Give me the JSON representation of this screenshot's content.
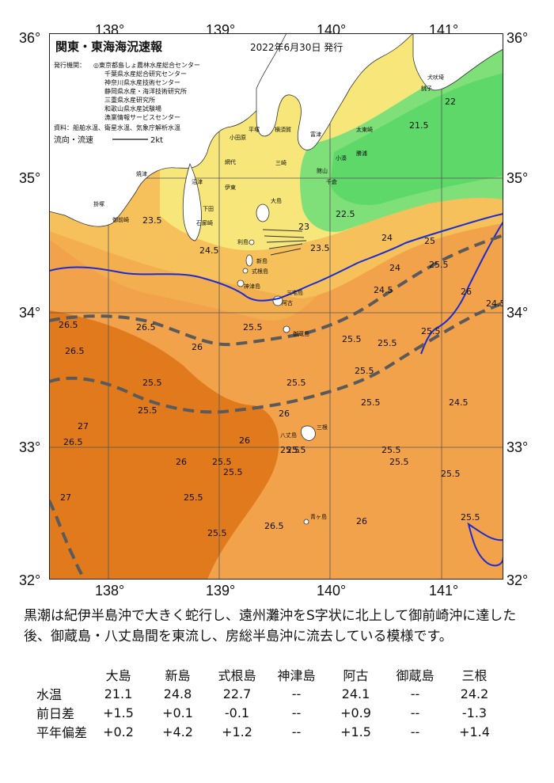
{
  "header": {
    "title": "関東・東海海況速報",
    "date": "2022年6月30日 発行"
  },
  "organizations": {
    "label": "発行機関：",
    "items": [
      "◎東京都島しょ農林水産総合センター",
      "千葉県水産総合研究センター",
      "神奈川県水産技術センター",
      "静岡県水産・海洋技術研究所",
      "三重県水産研究所",
      "和歌山県水産試験場",
      "漁業情報サービスセンター"
    ]
  },
  "source_line": "資料：船舶水温、衛星水温、気象庁解析水温",
  "flow_legend": {
    "label": "流向・流速",
    "value": "2kt"
  },
  "axes": {
    "lon_labels": [
      "138°",
      "139°",
      "140°",
      "141°"
    ],
    "lat_left": [
      "36°",
      "35°",
      "34°",
      "33°",
      "32°"
    ],
    "lat_right": [
      "36°",
      "35°",
      "34°",
      "33°",
      "32°"
    ]
  },
  "place_labels": {
    "choshi": "銚子",
    "inubosaki": "犬吠埼",
    "taitosaki": "太東崎",
    "katsuura": "勝浦",
    "kominato": "小湊",
    "futtsu": "富津",
    "yokosuka": "横須賀",
    "hiratsuka": "平塚",
    "odawara": "小田原",
    "ito": "伊東",
    "ajiro": "網代",
    "miura": "三崎",
    "tateyama": "館山",
    "chikura": "千倉",
    "numazu": "沼津",
    "yaizu": "焼津",
    "kakezuka": "掛塚",
    "omaezaki": "御前崎",
    "irozaki": "石廊崎",
    "shimoda": "下田",
    "oshima": "大島",
    "toshima": "利島",
    "niijima": "新島",
    "shikinejima": "式根島",
    "kozushima": "神津島",
    "miyakejima": "三宅島",
    "ako": "阿古",
    "mikurajima": "御蔵島",
    "hachijojima": "八丈島",
    "mitsune": "三根",
    "aogashima": "青ヶ島"
  },
  "isotherms": [
    "21.5",
    "22",
    "22.5",
    "23",
    "23.5",
    "24",
    "24.5",
    "25",
    "25.5",
    "26",
    "26.5",
    "27",
    "23.5",
    "24",
    "24.5",
    "25.5",
    "25.5",
    "25.5",
    "25.5",
    "24.5",
    "25.5",
    "25.5",
    "25.5",
    "26.5",
    "26.5",
    "26",
    "26",
    "25.5",
    "25.5",
    "25.5",
    "26.5",
    "27",
    "26.5",
    "26",
    "26",
    "25.5",
    "25.5",
    "25.5",
    "25.5",
    "25.5",
    "25.5",
    "25.5",
    "25.5",
    "24.5",
    "25.5",
    "26"
  ],
  "colors": {
    "ocean_warm": "#f2a24a",
    "ocean_hot": "#e07a1c",
    "ocean_mid": "#f6c05a",
    "ocean_cool": "#f7e67a",
    "ocean_cold": "#5fd86a",
    "kuroshio_axis": "#5a5a5a",
    "isotherm_25": "#1c2cd0",
    "land": "#ffffff"
  },
  "summary": "黒潮は紀伊半島沖で大きく蛇行し、遠州灘沖をS字状に北上して御前崎沖に達した後、御蔵島・八丈島間を東流し、房総半島沖に流去している模様です。",
  "stats": {
    "stations": [
      "大島",
      "新島",
      "式根島",
      "神津島",
      "阿古",
      "御蔵島",
      "三根"
    ],
    "rows": [
      {
        "label": "水温",
        "values": [
          "21.1",
          "24.8",
          "22.7",
          "--",
          "24.1",
          "--",
          "24.2"
        ]
      },
      {
        "label": "前日差",
        "values": [
          "+1.5",
          "+0.1",
          "-0.1",
          "--",
          "+0.9",
          "--",
          "-1.3"
        ]
      },
      {
        "label": "平年偏差",
        "values": [
          "+0.2",
          "+4.2",
          "+1.2",
          "--",
          "+1.5",
          "--",
          "+1.4"
        ]
      }
    ]
  }
}
